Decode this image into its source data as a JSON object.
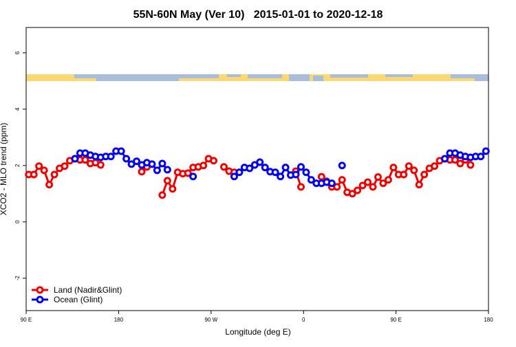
{
  "chart_data": {
    "type": "line",
    "title": "55N-60N May (Ver 10)   2015-01-01 to 2020-12-18",
    "x_label": "Longitude (deg E)",
    "y_label": "XCO2 - MLO trend (ppm)",
    "xlim": [
      90,
      540
    ],
    "ylim": [
      -3.15,
      6.9
    ],
    "xticks": [
      {
        "value": 90,
        "label": "90 E"
      },
      180,
      {
        "value": 270,
        "label": "90 W"
      },
      {
        "value": 360,
        "label": "0"
      },
      {
        "value": 450,
        "label": "90 E"
      },
      {
        "value": 540,
        "label": "180"
      }
    ],
    "yticks": [
      -2,
      0,
      2,
      4,
      6
    ],
    "legend": "bottom-left",
    "x": [
      92.5,
      97.5,
      102.5,
      107.5,
      112.5,
      117.5,
      122.5,
      127.5,
      132.5,
      137.5,
      142.5,
      147.5,
      152.5,
      157.5,
      162.5,
      167.5,
      172.5,
      177.5,
      182.5,
      187.5,
      192.5,
      197.5,
      202.5,
      207.5,
      212.5,
      217.5,
      222.5,
      227.5,
      232.5,
      237.5,
      242.5,
      247.5,
      252.5,
      257.5,
      262.5,
      267.5,
      272.5,
      277.5,
      282.5,
      287.5,
      292.5,
      297.5,
      302.5,
      307.5,
      312.5,
      317.5,
      322.5,
      327.5,
      332.5,
      337.5,
      342.5,
      347.5,
      352.5,
      357.5,
      362.5,
      367.5,
      372.5,
      377.5,
      382.5,
      387.5,
      392.5,
      397.5,
      402.5,
      407.5,
      412.5,
      417.5,
      422.5,
      427.5,
      432.5,
      437.5,
      442.5,
      447.5,
      452.5,
      457.5,
      462.5,
      467.5,
      472.5,
      477.5,
      482.5,
      487.5,
      492.5,
      497.5,
      502.5,
      507.5,
      512.5,
      517.5,
      522.5,
      527.5,
      532.5,
      537.5
    ],
    "series": [
      {
        "name": "Land (Nadir&Glint)",
        "color": "#ee0000",
        "values": [
          1.68,
          1.68,
          1.98,
          1.83,
          1.32,
          1.68,
          1.9,
          1.98,
          2.17,
          2.24,
          2.2,
          2.2,
          2.07,
          2.1,
          2.02,
          null,
          null,
          null,
          null,
          null,
          null,
          null,
          1.78,
          1.95,
          null,
          null,
          0.95,
          1.46,
          1.17,
          1.76,
          1.71,
          1.73,
          1.93,
          1.95,
          2.0,
          2.24,
          2.17,
          null,
          1.95,
          1.8,
          1.76,
          null,
          null,
          null,
          null,
          null,
          null,
          null,
          null,
          null,
          null,
          null,
          1.8,
          1.24,
          null,
          null,
          null,
          1.6,
          1.44,
          1.24,
          1.24,
          1.49,
          1.05,
          1.0,
          1.12,
          1.29,
          1.41,
          1.24,
          1.59,
          1.37,
          1.49,
          1.93,
          1.68,
          1.68,
          1.98,
          1.83,
          1.32,
          1.68,
          1.9,
          1.98,
          2.17,
          2.24,
          2.2,
          2.2,
          2.07,
          2.2,
          2.02,
          null,
          null,
          null
        ]
      },
      {
        "name": "Ocean (Glint)",
        "color": "#0000ee",
        "values": [
          null,
          null,
          null,
          null,
          null,
          null,
          null,
          null,
          null,
          2.24,
          2.44,
          2.44,
          2.37,
          2.32,
          2.29,
          2.32,
          2.32,
          2.51,
          2.51,
          2.24,
          2.05,
          2.15,
          2.02,
          2.1,
          2.05,
          1.83,
          2.07,
          1.85,
          null,
          null,
          null,
          null,
          1.61,
          null,
          null,
          null,
          null,
          null,
          null,
          null,
          1.61,
          1.76,
          1.93,
          1.9,
          2.02,
          2.12,
          1.93,
          1.78,
          1.76,
          1.61,
          1.93,
          1.66,
          1.68,
          1.95,
          1.76,
          1.49,
          1.37,
          1.37,
          1.41,
          1.37,
          null,
          2.0,
          null,
          null,
          null,
          null,
          null,
          null,
          null,
          null,
          null,
          null,
          null,
          null,
          null,
          null,
          null,
          null,
          null,
          null,
          null,
          2.24,
          2.44,
          2.44,
          2.37,
          2.32,
          2.29,
          2.32,
          2.32,
          2.51
        ]
      }
    ]
  }
}
